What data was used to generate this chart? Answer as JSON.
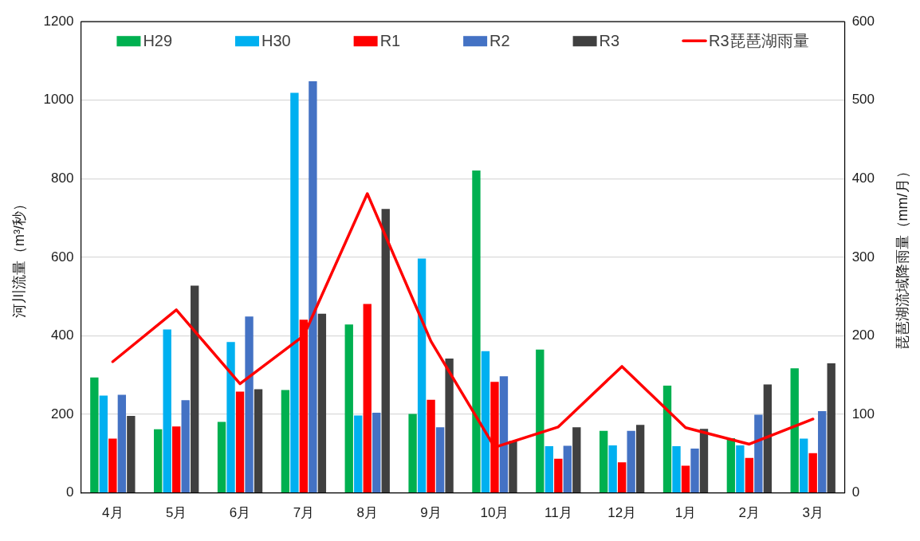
{
  "chart_data": {
    "type": "bar",
    "categories": [
      "4月",
      "5月",
      "6月",
      "7月",
      "8月",
      "9月",
      "10月",
      "11月",
      "12月",
      "1月",
      "2月",
      "3月"
    ],
    "ylabel": "河川流量（m³/秒）",
    "y2label": "琵琶湖流域降雨量（mm/月）",
    "ylim": [
      0,
      1200
    ],
    "yticks": [
      0,
      200,
      400,
      600,
      800,
      1000,
      1200
    ],
    "y2lim": [
      0,
      600
    ],
    "y2ticks": [
      0,
      100,
      200,
      300,
      400,
      500,
      600
    ],
    "grid": "y",
    "legend": "top",
    "marker": "none",
    "series": [
      {
        "name": "H29",
        "color": "#00b050",
        "values": [
          294,
          162,
          181,
          262,
          429,
          201,
          821,
          365,
          158,
          273,
          139,
          317
        ]
      },
      {
        "name": "H30",
        "color": "#00b0f0",
        "values": [
          248,
          416,
          384,
          1019,
          197,
          597,
          361,
          119,
          121,
          119,
          121,
          138
        ]
      },
      {
        "name": "R1",
        "color": "#ff0000",
        "values": [
          138,
          169,
          258,
          441,
          481,
          237,
          283,
          87,
          78,
          69,
          89,
          101
        ]
      },
      {
        "name": "R2",
        "color": "#4472c4",
        "values": [
          250,
          236,
          449,
          1048,
          204,
          167,
          297,
          120,
          158,
          113,
          199,
          208
        ]
      },
      {
        "name": "R3",
        "color": "#404040",
        "values": [
          196,
          528,
          264,
          456,
          723,
          342,
          132,
          167,
          173,
          163,
          276,
          330
        ]
      },
      {
        "name": "R3琵琶湖雨量",
        "type": "line",
        "axis": "y2",
        "color": "#ff0000",
        "values": [
          167,
          233,
          139,
          200,
          381,
          193,
          58,
          84,
          161,
          83,
          62,
          94
        ]
      }
    ]
  }
}
